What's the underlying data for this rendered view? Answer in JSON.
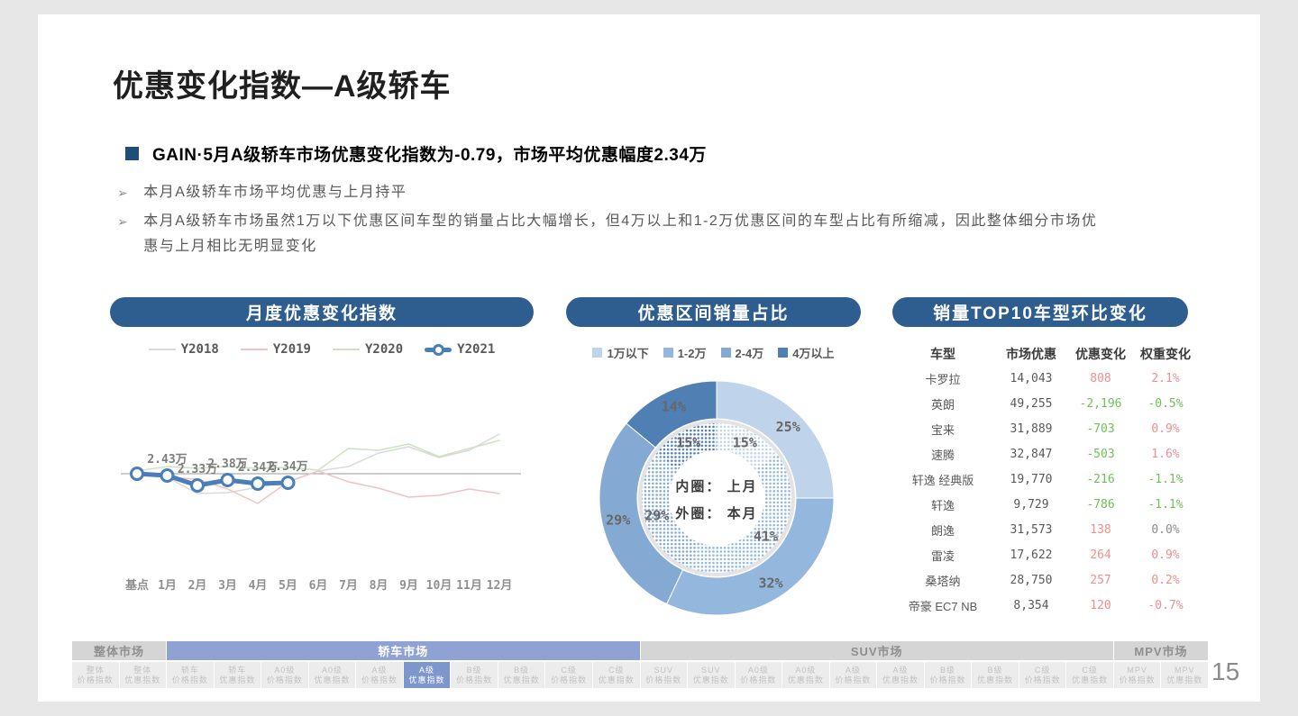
{
  "page": {
    "number": "15",
    "background": "#e7e7e7"
  },
  "colors": {
    "section_header": "#2e5e8f",
    "bullet_square": "#1f4e79",
    "positive_red": "#f08e8e",
    "negative_green": "#6fbf58",
    "neutral_gray": "#8c8c8c"
  },
  "header": {
    "title": "优惠变化指数—A级轿车"
  },
  "summary": {
    "headline": "GAIN·5月A级轿车市场优惠变化指数为-0.79，市场平均优惠幅度2.34万",
    "points": [
      "本月A级轿车市场平均优惠与上月持平",
      "本月A级轿车市场虽然1万以下优惠区间车型的销量占比大幅增长，但4万以上和1-2万优惠区间的车型占比有所缩减，因此整体细分市场优惠与上月相比无明显变化"
    ]
  },
  "chart_data": [
    {
      "type": "line",
      "title": "月度优惠变化指数",
      "categories": [
        "基点",
        "1月",
        "2月",
        "3月",
        "4月",
        "5月",
        "6月",
        "7月",
        "8月",
        "9月",
        "10月",
        "11月",
        "12月"
      ],
      "baseline": 0,
      "ylim": [
        -45,
        55
      ],
      "grid": false,
      "legend_position": "top",
      "series": [
        {
          "name": "Y2018",
          "color": "#d9d9d9",
          "values": [
            0,
            -4,
            -22,
            -21,
            -15,
            -9,
            3,
            8,
            23,
            30,
            18,
            26,
            44
          ]
        },
        {
          "name": "Y2019",
          "color": "#f2c2c2",
          "values": [
            -1,
            -4,
            -6,
            -17,
            -33,
            -9,
            3,
            -9,
            -16,
            -26,
            -24,
            -17,
            -22
          ]
        },
        {
          "name": "Y2020",
          "color": "#cbe3bf",
          "values": [
            3,
            8,
            6,
            8,
            6,
            7,
            4,
            28,
            26,
            33,
            19,
            28,
            37
          ]
        },
        {
          "name": "Y2021",
          "color": "#4a7ebb",
          "values": [
            0,
            -2,
            -13,
            -7,
            -11,
            -10
          ],
          "labels": [
            "",
            "2.43万",
            "2.33万",
            "2.38万",
            "2.34万",
            "2.34万"
          ]
        }
      ]
    },
    {
      "type": "donut",
      "title": "优惠区间销量占比",
      "categories": [
        "1万以下",
        "1-2万",
        "2-4万",
        "4万以上"
      ],
      "colors": [
        "#bfd4ea",
        "#93b7dd",
        "#84aad4",
        "#4f7fb3"
      ],
      "rings": [
        {
          "name": "本月（外圈）",
          "values": [
            25,
            32,
            29,
            14
          ]
        },
        {
          "name": "上月（内圈）",
          "values": [
            15,
            41,
            29,
            15
          ]
        }
      ],
      "center_lines": [
        "内圈： 上月",
        "外圈： 本月"
      ],
      "legend_position": "top"
    }
  ],
  "top10_table": {
    "title": "销量TOP10车型环比变化",
    "headers": [
      "车型",
      "市场优惠",
      "优惠变化",
      "权重变化"
    ],
    "rows": [
      {
        "model": "卡罗拉",
        "discount": "14,043",
        "change": "808",
        "change_color": "red",
        "weight": "2.1%",
        "weight_color": "red"
      },
      {
        "model": "英朗",
        "discount": "49,255",
        "change": "-2,196",
        "change_color": "green",
        "weight": "-0.5%",
        "weight_color": "green"
      },
      {
        "model": "宝来",
        "discount": "31,889",
        "change": "-703",
        "change_color": "green",
        "weight": "0.9%",
        "weight_color": "red"
      },
      {
        "model": "速腾",
        "discount": "32,847",
        "change": "-503",
        "change_color": "green",
        "weight": "1.6%",
        "weight_color": "red"
      },
      {
        "model": "轩逸 经典版",
        "discount": "19,770",
        "change": "-216",
        "change_color": "green",
        "weight": "-1.1%",
        "weight_color": "green"
      },
      {
        "model": "轩逸",
        "discount": "9,729",
        "change": "-786",
        "change_color": "green",
        "weight": "-1.1%",
        "weight_color": "green"
      },
      {
        "model": "朗逸",
        "discount": "31,573",
        "change": "138",
        "change_color": "red",
        "weight": "0.0%",
        "weight_color": "gray"
      },
      {
        "model": "雷凌",
        "discount": "17,622",
        "change": "264",
        "change_color": "red",
        "weight": "0.9%",
        "weight_color": "red"
      },
      {
        "model": "桑塔纳",
        "discount": "28,750",
        "change": "257",
        "change_color": "red",
        "weight": "0.2%",
        "weight_color": "red"
      },
      {
        "model": "帝豪 EC7 NB",
        "discount": "8,354",
        "change": "120",
        "change_color": "red",
        "weight": "-0.7%",
        "weight_color": "red"
      }
    ]
  },
  "market_nav": {
    "groups": [
      {
        "label": "整体市场",
        "span": 2,
        "active": false
      },
      {
        "label": "轿车市场",
        "span": 10,
        "active": true
      },
      {
        "label": "SUV市场",
        "span": 10,
        "active": false
      },
      {
        "label": "MPV市场",
        "span": 2,
        "active": false
      }
    ],
    "items": [
      {
        "line1": "整体",
        "line2": "价格指数",
        "active": false
      },
      {
        "line1": "整体",
        "line2": "优惠指数",
        "active": false
      },
      {
        "line1": "轿车",
        "line2": "价格指数",
        "active": false
      },
      {
        "line1": "轿车",
        "line2": "优惠指数",
        "active": false
      },
      {
        "line1": "A0级",
        "line2": "价格指数",
        "active": false
      },
      {
        "line1": "A0级",
        "line2": "优惠指数",
        "active": false
      },
      {
        "line1": "A级",
        "line2": "价格指数",
        "active": false
      },
      {
        "line1": "A级",
        "line2": "优惠指数",
        "active": true
      },
      {
        "line1": "B级",
        "line2": "价格指数",
        "active": false
      },
      {
        "line1": "B级",
        "line2": "优惠指数",
        "active": false
      },
      {
        "line1": "C级",
        "line2": "价格指数",
        "active": false
      },
      {
        "line1": "C级",
        "line2": "优惠指数",
        "active": false
      },
      {
        "line1": "SUV",
        "line2": "价格指数",
        "active": false
      },
      {
        "line1": "SUV",
        "line2": "优惠指数",
        "active": false
      },
      {
        "line1": "A0级",
        "line2": "价格指数",
        "active": false
      },
      {
        "line1": "A0级",
        "line2": "优惠指数",
        "active": false
      },
      {
        "line1": "A级",
        "line2": "价格指数",
        "active": false
      },
      {
        "line1": "A级",
        "line2": "优惠指数",
        "active": false
      },
      {
        "line1": "B级",
        "line2": "价格指数",
        "active": false
      },
      {
        "line1": "B级",
        "line2": "优惠指数",
        "active": false
      },
      {
        "line1": "C级",
        "line2": "价格指数",
        "active": false
      },
      {
        "line1": "C级",
        "line2": "优惠指数",
        "active": false
      },
      {
        "line1": "MPV",
        "line2": "价格指数",
        "active": false
      },
      {
        "line1": "MPV",
        "line2": "优惠指数",
        "active": false
      }
    ]
  }
}
